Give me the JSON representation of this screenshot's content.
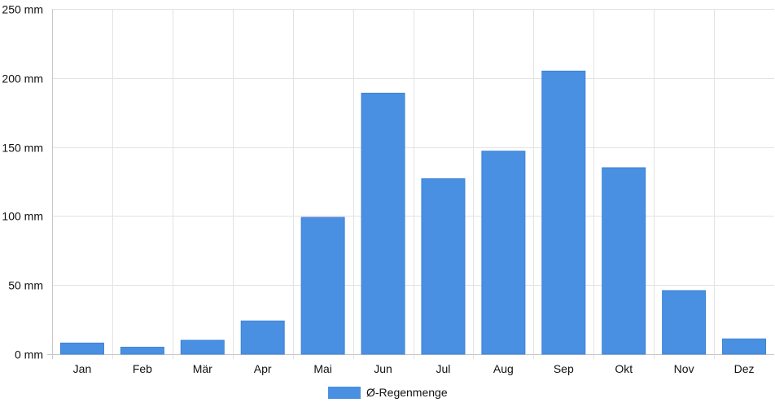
{
  "chart_data": {
    "type": "bar",
    "categories": [
      "Jan",
      "Feb",
      "Mär",
      "Apr",
      "Mai",
      "Jun",
      "Jul",
      "Aug",
      "Sep",
      "Okt",
      "Nov",
      "Dez"
    ],
    "series": [
      {
        "name": "Ø-Regenmenge",
        "color": "#4a90e2",
        "values": [
          8,
          5,
          10,
          24,
          99,
          189,
          127,
          147,
          205,
          135,
          46,
          11
        ]
      }
    ],
    "y_ticks": [
      "0 mm",
      "50 mm",
      "100 mm",
      "150 mm",
      "200 mm",
      "250 mm"
    ],
    "ylim": [
      0,
      250
    ],
    "y_step": 50,
    "grid": true,
    "legend_position": "bottom"
  }
}
